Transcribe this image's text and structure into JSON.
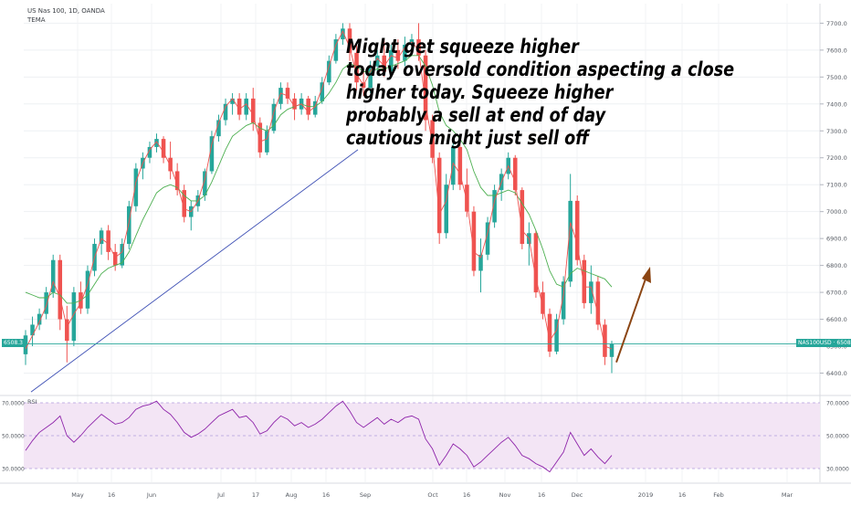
{
  "header": {
    "symbol_line": "US Nas 100, 1D, OANDA",
    "indicator": "TEMA"
  },
  "annotation": [
    "Might get squeeze higher",
    "today oversold condition aspecting a close",
    "higher today. Squeeze higher",
    "probably a sell at end of day",
    "cautious might just sell off"
  ],
  "colors": {
    "up": "#26a69a",
    "down": "#ef5350",
    "trendline": "#3f51b5",
    "tema_fast": "#ef5350",
    "tema_slow": "#4caf50",
    "arrow": "#8b4513",
    "rsi_line": "#8e24aa",
    "rsi_band": "#f3e5f5",
    "price_line": "#26a69a"
  },
  "chart_data": [
    {
      "type": "candlestick",
      "title": "US Nas 100, 1D, OANDA",
      "indicator": "TEMA",
      "ylim": [
        6300,
        7750
      ],
      "y_ticks": [
        "6400.0",
        "6500.0",
        "6600.0",
        "6700.0",
        "6800.0",
        "6900.0",
        "7000.0",
        "7100.0",
        "7200.0",
        "7300.0",
        "7400.0",
        "7500.0",
        "7600.0",
        "7700.0"
      ],
      "x_ticks": [
        "May",
        "16",
        "Jun",
        "Jul",
        "17",
        "Aug",
        "16",
        "Sep",
        "Oct",
        "16",
        "Nov",
        "16",
        "Dec",
        "2019",
        "16",
        "Feb",
        "Mar"
      ],
      "current_price_label_left": "6508.3",
      "current_price_label_right": "NAS100USD · 6508.3",
      "current_price": 6508.3,
      "candles": [
        {
          "t": "Apr 23",
          "o": 6470,
          "h": 6560,
          "l": 6430,
          "c": 6540
        },
        {
          "t": "Apr 25",
          "o": 6540,
          "h": 6610,
          "l": 6500,
          "c": 6580
        },
        {
          "t": "Apr 27",
          "o": 6580,
          "h": 6640,
          "l": 6560,
          "c": 6620
        },
        {
          "t": "May 01",
          "o": 6620,
          "h": 6720,
          "l": 6600,
          "c": 6700
        },
        {
          "t": "May 03",
          "o": 6700,
          "h": 6840,
          "l": 6680,
          "c": 6820
        },
        {
          "t": "May 07",
          "o": 6820,
          "h": 6840,
          "l": 6560,
          "c": 6600
        },
        {
          "t": "May 09",
          "o": 6600,
          "h": 6650,
          "l": 6440,
          "c": 6520
        },
        {
          "t": "May 11",
          "o": 6520,
          "h": 6720,
          "l": 6500,
          "c": 6700
        },
        {
          "t": "May 15",
          "o": 6700,
          "h": 6740,
          "l": 6620,
          "c": 6640
        },
        {
          "t": "May 17",
          "o": 6640,
          "h": 6800,
          "l": 6620,
          "c": 6780
        },
        {
          "t": "May 21",
          "o": 6780,
          "h": 6900,
          "l": 6760,
          "c": 6880
        },
        {
          "t": "May 23",
          "o": 6880,
          "h": 6940,
          "l": 6840,
          "c": 6930
        },
        {
          "t": "May 25",
          "o": 6930,
          "h": 6950,
          "l": 6820,
          "c": 6850
        },
        {
          "t": "May 29",
          "o": 6850,
          "h": 6880,
          "l": 6780,
          "c": 6800
        },
        {
          "t": "May 31",
          "o": 6800,
          "h": 6900,
          "l": 6790,
          "c": 6880
        },
        {
          "t": "Jun 04",
          "o": 6880,
          "h": 7040,
          "l": 6860,
          "c": 7020
        },
        {
          "t": "Jun 06",
          "o": 7020,
          "h": 7180,
          "l": 7000,
          "c": 7160
        },
        {
          "t": "Jun 08",
          "o": 7160,
          "h": 7220,
          "l": 7120,
          "c": 7200
        },
        {
          "t": "Jun 12",
          "o": 7200,
          "h": 7260,
          "l": 7180,
          "c": 7240
        },
        {
          "t": "Jun 14",
          "o": 7240,
          "h": 7290,
          "l": 7220,
          "c": 7270
        },
        {
          "t": "Jun 18",
          "o": 7270,
          "h": 7280,
          "l": 7180,
          "c": 7200
        },
        {
          "t": "Jun 20",
          "o": 7200,
          "h": 7260,
          "l": 7120,
          "c": 7150
        },
        {
          "t": "Jun 22",
          "o": 7150,
          "h": 7180,
          "l": 7060,
          "c": 7080
        },
        {
          "t": "Jun 26",
          "o": 7080,
          "h": 7100,
          "l": 6960,
          "c": 6980
        },
        {
          "t": "Jun 28",
          "o": 6980,
          "h": 7040,
          "l": 6930,
          "c": 7020
        },
        {
          "t": "Jul 02",
          "o": 7020,
          "h": 7080,
          "l": 7000,
          "c": 7060
        },
        {
          "t": "Jul 05",
          "o": 7060,
          "h": 7160,
          "l": 7040,
          "c": 7150
        },
        {
          "t": "Jul 09",
          "o": 7150,
          "h": 7300,
          "l": 7140,
          "c": 7280
        },
        {
          "t": "Jul 11",
          "o": 7280,
          "h": 7360,
          "l": 7260,
          "c": 7340
        },
        {
          "t": "Jul 13",
          "o": 7340,
          "h": 7420,
          "l": 7320,
          "c": 7400
        },
        {
          "t": "Jul 17",
          "o": 7400,
          "h": 7440,
          "l": 7360,
          "c": 7420
        },
        {
          "t": "Jul 19",
          "o": 7420,
          "h": 7440,
          "l": 7340,
          "c": 7360
        },
        {
          "t": "Jul 23",
          "o": 7360,
          "h": 7440,
          "l": 7340,
          "c": 7420
        },
        {
          "t": "Jul 25",
          "o": 7420,
          "h": 7460,
          "l": 7300,
          "c": 7330
        },
        {
          "t": "Jul 27",
          "o": 7330,
          "h": 7350,
          "l": 7200,
          "c": 7220
        },
        {
          "t": "Jul 31",
          "o": 7220,
          "h": 7320,
          "l": 7210,
          "c": 7300
        },
        {
          "t": "Aug 02",
          "o": 7300,
          "h": 7420,
          "l": 7290,
          "c": 7400
        },
        {
          "t": "Aug 06",
          "o": 7400,
          "h": 7480,
          "l": 7380,
          "c": 7460
        },
        {
          "t": "Aug 08",
          "o": 7460,
          "h": 7480,
          "l": 7400,
          "c": 7420
        },
        {
          "t": "Aug 10",
          "o": 7420,
          "h": 7440,
          "l": 7340,
          "c": 7380
        },
        {
          "t": "Aug 14",
          "o": 7380,
          "h": 7440,
          "l": 7360,
          "c": 7420
        },
        {
          "t": "Aug 16",
          "o": 7420,
          "h": 7430,
          "l": 7340,
          "c": 7360
        },
        {
          "t": "Aug 20",
          "o": 7360,
          "h": 7430,
          "l": 7350,
          "c": 7410
        },
        {
          "t": "Aug 22",
          "o": 7410,
          "h": 7500,
          "l": 7400,
          "c": 7480
        },
        {
          "t": "Aug 24",
          "o": 7480,
          "h": 7580,
          "l": 7470,
          "c": 7560
        },
        {
          "t": "Aug 28",
          "o": 7560,
          "h": 7660,
          "l": 7550,
          "c": 7640
        },
        {
          "t": "Aug 30",
          "o": 7640,
          "h": 7700,
          "l": 7620,
          "c": 7680
        },
        {
          "t": "Sep 04",
          "o": 7680,
          "h": 7700,
          "l": 7560,
          "c": 7590
        },
        {
          "t": "Sep 06",
          "o": 7590,
          "h": 7620,
          "l": 7450,
          "c": 7480
        },
        {
          "t": "Sep 10",
          "o": 7480,
          "h": 7520,
          "l": 7430,
          "c": 7460
        },
        {
          "t": "Sep 12",
          "o": 7460,
          "h": 7560,
          "l": 7440,
          "c": 7540
        },
        {
          "t": "Sep 14",
          "o": 7540,
          "h": 7600,
          "l": 7520,
          "c": 7580
        },
        {
          "t": "Sep 18",
          "o": 7580,
          "h": 7640,
          "l": 7500,
          "c": 7520
        },
        {
          "t": "Sep 20",
          "o": 7520,
          "h": 7620,
          "l": 7500,
          "c": 7600
        },
        {
          "t": "Sep 24",
          "o": 7600,
          "h": 7640,
          "l": 7530,
          "c": 7560
        },
        {
          "t": "Sep 26",
          "o": 7560,
          "h": 7650,
          "l": 7540,
          "c": 7620
        },
        {
          "t": "Sep 28",
          "o": 7620,
          "h": 7660,
          "l": 7580,
          "c": 7640
        },
        {
          "t": "Oct 02",
          "o": 7640,
          "h": 7700,
          "l": 7560,
          "c": 7580
        },
        {
          "t": "Oct 04",
          "o": 7580,
          "h": 7600,
          "l": 7300,
          "c": 7340
        },
        {
          "t": "Oct 08",
          "o": 7340,
          "h": 7360,
          "l": 7180,
          "c": 7200
        },
        {
          "t": "Oct 10",
          "o": 7200,
          "h": 7220,
          "l": 6880,
          "c": 6920
        },
        {
          "t": "Oct 12",
          "o": 6920,
          "h": 7140,
          "l": 6900,
          "c": 7100
        },
        {
          "t": "Oct 16",
          "o": 7100,
          "h": 7260,
          "l": 7080,
          "c": 7240
        },
        {
          "t": "Oct 18",
          "o": 7240,
          "h": 7250,
          "l": 7080,
          "c": 7100
        },
        {
          "t": "Oct 22",
          "o": 7100,
          "h": 7160,
          "l": 6980,
          "c": 7000
        },
        {
          "t": "Oct 24",
          "o": 7000,
          "h": 7020,
          "l": 6760,
          "c": 6780
        },
        {
          "t": "Oct 26",
          "o": 6780,
          "h": 6900,
          "l": 6700,
          "c": 6840
        },
        {
          "t": "Oct 30",
          "o": 6840,
          "h": 6980,
          "l": 6820,
          "c": 6960
        },
        {
          "t": "Nov 01",
          "o": 6960,
          "h": 7100,
          "l": 6940,
          "c": 7080
        },
        {
          "t": "Nov 05",
          "o": 7080,
          "h": 7160,
          "l": 7040,
          "c": 7140
        },
        {
          "t": "Nov 07",
          "o": 7140,
          "h": 7220,
          "l": 7120,
          "c": 7200
        },
        {
          "t": "Nov 09",
          "o": 7200,
          "h": 7210,
          "l": 7060,
          "c": 7080
        },
        {
          "t": "Nov 13",
          "o": 7080,
          "h": 7090,
          "l": 6860,
          "c": 6880
        },
        {
          "t": "Nov 15",
          "o": 6880,
          "h": 6960,
          "l": 6800,
          "c": 6920
        },
        {
          "t": "Nov 19",
          "o": 6920,
          "h": 6930,
          "l": 6680,
          "c": 6700
        },
        {
          "t": "Nov 21",
          "o": 6700,
          "h": 6740,
          "l": 6600,
          "c": 6620
        },
        {
          "t": "Nov 23",
          "o": 6620,
          "h": 6640,
          "l": 6460,
          "c": 6480
        },
        {
          "t": "Nov 27",
          "o": 6480,
          "h": 6620,
          "l": 6470,
          "c": 6600
        },
        {
          "t": "Nov 29",
          "o": 6600,
          "h": 6760,
          "l": 6580,
          "c": 6740
        },
        {
          "t": "Dec 03",
          "o": 6740,
          "h": 7140,
          "l": 6720,
          "c": 7040
        },
        {
          "t": "Dec 05",
          "o": 7040,
          "h": 7060,
          "l": 6800,
          "c": 6820
        },
        {
          "t": "Dec 07",
          "o": 6820,
          "h": 6840,
          "l": 6640,
          "c": 6660
        },
        {
          "t": "Dec 11",
          "o": 6660,
          "h": 6800,
          "l": 6620,
          "c": 6740
        },
        {
          "t": "Dec 13",
          "o": 6740,
          "h": 6760,
          "l": 6560,
          "c": 6580
        },
        {
          "t": "Dec 17",
          "o": 6580,
          "h": 6600,
          "l": 6430,
          "c": 6460
        },
        {
          "t": "Dec 19",
          "o": 6460,
          "h": 6520,
          "l": 6400,
          "c": 6508
        }
      ],
      "tema_fast": [
        6490,
        6540,
        6590,
        6650,
        6740,
        6680,
        6570,
        6620,
        6660,
        6730,
        6830,
        6900,
        6880,
        6830,
        6850,
        6960,
        7110,
        7180,
        7230,
        7260,
        7220,
        7170,
        7100,
        7010,
        7000,
        7040,
        7120,
        7250,
        7330,
        7390,
        7420,
        7380,
        7400,
        7360,
        7260,
        7270,
        7370,
        7440,
        7430,
        7390,
        7400,
        7370,
        7390,
        7460,
        7540,
        7620,
        7670,
        7610,
        7510,
        7470,
        7520,
        7570,
        7540,
        7580,
        7570,
        7610,
        7630,
        7600,
        7400,
        7250,
        6990,
        7040,
        7180,
        7140,
        7040,
        6850,
        6830,
        6920,
        7040,
        7110,
        7170,
        7110,
        6930,
        6900,
        6750,
        6650,
        6520,
        6560,
        6690,
        6960,
        6880,
        6720,
        6720,
        6620,
        6500,
        6490
      ],
      "tema_slow": [
        6700,
        6690,
        6680,
        6680,
        6700,
        6690,
        6660,
        6660,
        6670,
        6690,
        6730,
        6770,
        6790,
        6800,
        6810,
        6850,
        6910,
        6970,
        7020,
        7070,
        7090,
        7100,
        7090,
        7060,
        7040,
        7040,
        7060,
        7110,
        7170,
        7230,
        7280,
        7300,
        7320,
        7330,
        7310,
        7300,
        7320,
        7360,
        7380,
        7390,
        7400,
        7390,
        7390,
        7410,
        7440,
        7480,
        7530,
        7550,
        7540,
        7520,
        7520,
        7530,
        7530,
        7540,
        7550,
        7560,
        7580,
        7580,
        7540,
        7470,
        7370,
        7320,
        7300,
        7270,
        7230,
        7150,
        7090,
        7060,
        7060,
        7070,
        7080,
        7070,
        7030,
        6990,
        6930,
        6860,
        6780,
        6730,
        6720,
        6770,
        6790,
        6780,
        6770,
        6760,
        6750,
        6720
      ]
    },
    {
      "type": "line",
      "title": "RSI",
      "ylim": [
        20,
        80
      ],
      "y_ticks": [
        "30.0000",
        "50.0000",
        "70.0000"
      ],
      "band": [
        30,
        70
      ],
      "series": [
        {
          "values": [
            41,
            47,
            52,
            55,
            58,
            62,
            50,
            46,
            50,
            55,
            59,
            63,
            60,
            57,
            58,
            61,
            66,
            68,
            69,
            71,
            66,
            63,
            58,
            52,
            49,
            51,
            54,
            58,
            62,
            64,
            66,
            61,
            62,
            58,
            51,
            53,
            58,
            62,
            60,
            56,
            58,
            55,
            57,
            60,
            64,
            68,
            71,
            65,
            58,
            55,
            58,
            61,
            57,
            60,
            58,
            61,
            62,
            60,
            48,
            42,
            32,
            38,
            45,
            42,
            38,
            31,
            34,
            38,
            42,
            46,
            49,
            44,
            38,
            36,
            33,
            31,
            28,
            34,
            40,
            52,
            45,
            38,
            42,
            37,
            33,
            38
          ]
        }
      ]
    }
  ]
}
